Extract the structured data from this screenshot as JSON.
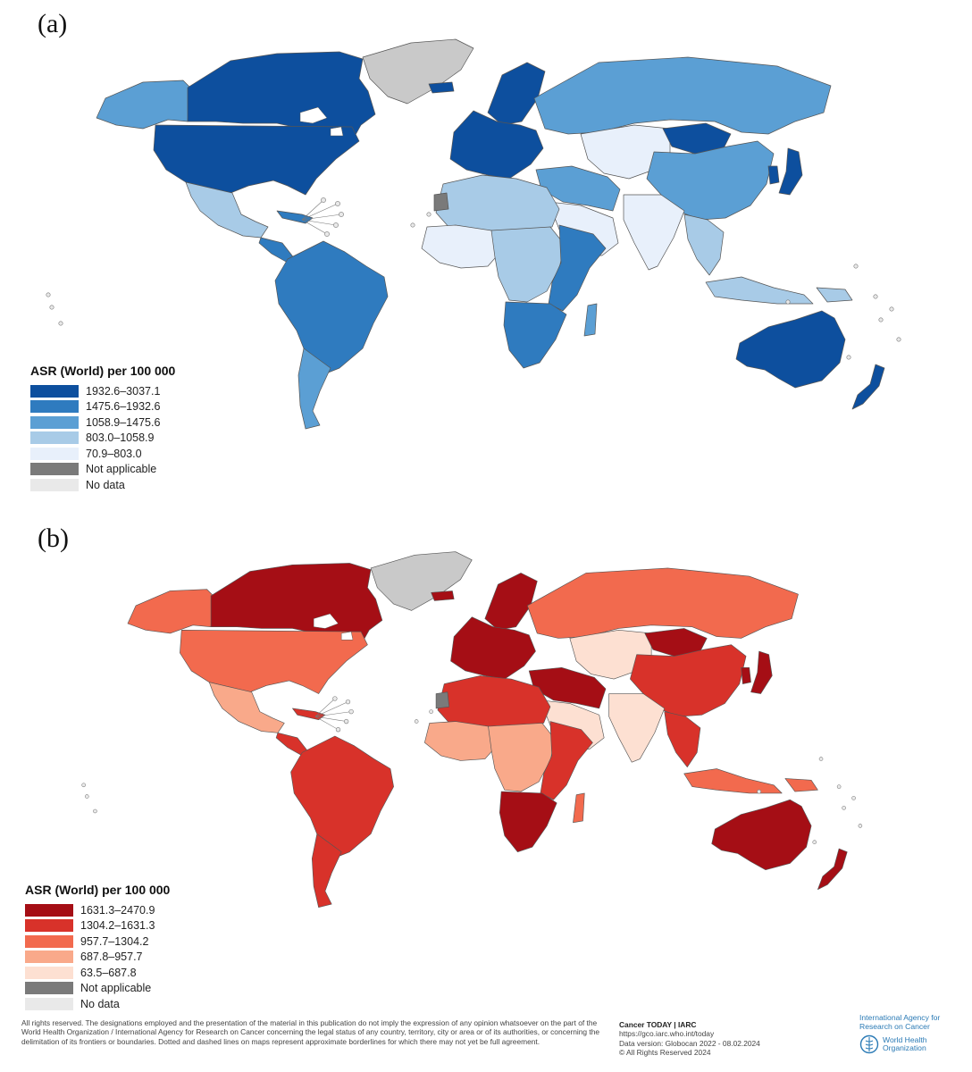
{
  "colors": {
    "blue_scale": [
      "#0d4f9e",
      "#2f7bbf",
      "#5b9fd4",
      "#a8cbe7",
      "#e8f0fb"
    ],
    "red_scale": [
      "#a50e15",
      "#d8322a",
      "#f26a4e",
      "#f9a98a",
      "#fde0d2"
    ],
    "not_applicable": "#7a7a7a",
    "no_data": "#e9e9e9",
    "greenland": "#c9c9c9",
    "border": "#555555"
  },
  "panels": [
    {
      "letter": "(a)",
      "legend": {
        "title": "ASR (World) per 100 000",
        "items": [
          {
            "label": "1932.6–3037.1",
            "color": "#0d4f9e"
          },
          {
            "label": "1475.6–1932.6",
            "color": "#2f7bbf"
          },
          {
            "label": "1058.9–1475.6",
            "color": "#5b9fd4"
          },
          {
            "label": "803.0–1058.9",
            "color": "#a8cbe7"
          },
          {
            "label": "70.9–803.0",
            "color": "#e8f0fb"
          },
          {
            "label": "Not applicable",
            "color": "#7a7a7a"
          },
          {
            "label": "No data",
            "color": "#e9e9e9"
          }
        ]
      },
      "regions": {
        "canada": "#0d4f9e",
        "usa": "#0d4f9e",
        "alaska": "#5b9fd4",
        "mexico": "#a8cbe7",
        "central_america": "#2f7bbf",
        "caribbean": "#2f7bbf",
        "south_america": "#2f7bbf",
        "southern_cone": "#5b9fd4",
        "greenland": "#c9c9c9",
        "iceland": "#0d4f9e",
        "europe": "#0d4f9e",
        "scandinavia": "#0d4f9e",
        "russia": "#5b9fd4",
        "central_asia": "#e8f0fb",
        "mongolia": "#0d4f9e",
        "china": "#5b9fd4",
        "japan": "#0d4f9e",
        "korea": "#0d4f9e",
        "middle_east": "#5b9fd4",
        "arabia": "#e8f0fb",
        "india": "#e8f0fb",
        "southeast_asia": "#a8cbe7",
        "indonesia": "#a8cbe7",
        "north_africa": "#a8cbe7",
        "west_africa": "#e8f0fb",
        "central_africa": "#a8cbe7",
        "east_africa": "#2f7bbf",
        "southern_africa": "#2f7bbf",
        "madagascar": "#5b9fd4",
        "australia": "#0d4f9e",
        "new_zealand": "#0d4f9e",
        "png": "#a8cbe7",
        "western_sahara": "#7a7a7a"
      }
    },
    {
      "letter": "(b)",
      "legend": {
        "title": "ASR (World) per 100 000",
        "items": [
          {
            "label": "1631.3–2470.9",
            "color": "#a50e15"
          },
          {
            "label": "1304.2–1631.3",
            "color": "#d8322a"
          },
          {
            "label": "957.7–1304.2",
            "color": "#f26a4e"
          },
          {
            "label": "687.8–957.7",
            "color": "#f9a98a"
          },
          {
            "label": "63.5–687.8",
            "color": "#fde0d2"
          },
          {
            "label": "Not applicable",
            "color": "#7a7a7a"
          },
          {
            "label": "No data",
            "color": "#e9e9e9"
          }
        ]
      },
      "regions": {
        "canada": "#a50e15",
        "usa": "#f26a4e",
        "alaska": "#f26a4e",
        "mexico": "#f9a98a",
        "central_america": "#d8322a",
        "caribbean": "#d8322a",
        "south_america": "#d8322a",
        "southern_cone": "#d8322a",
        "greenland": "#c9c9c9",
        "iceland": "#a50e15",
        "europe": "#a50e15",
        "scandinavia": "#a50e15",
        "russia": "#f26a4e",
        "central_asia": "#fde0d2",
        "mongolia": "#a50e15",
        "china": "#d8322a",
        "japan": "#a50e15",
        "korea": "#a50e15",
        "middle_east": "#a50e15",
        "arabia": "#fde0d2",
        "india": "#fde0d2",
        "southeast_asia": "#d8322a",
        "indonesia": "#f26a4e",
        "north_africa": "#d8322a",
        "west_africa": "#f9a98a",
        "central_africa": "#f9a98a",
        "east_africa": "#d8322a",
        "southern_africa": "#a50e15",
        "madagascar": "#f26a4e",
        "australia": "#a50e15",
        "new_zealand": "#a50e15",
        "png": "#f26a4e",
        "western_sahara": "#7a7a7a"
      }
    }
  ],
  "footer": {
    "disclaimer": "All rights reserved. The designations employed and the presentation of the material in this publication do not imply the expression of any opinion whatsoever on the part of the World Health Organization / International Agency for Research on Cancer concerning the legal status of any country, territory, city or area or of its authorities, or concerning the delimitation of its frontiers or boundaries. Dotted and dashed lines on maps represent approximate borderlines for which there may not yet be full agreement.",
    "source_title": "Cancer TODAY | IARC",
    "source_url": "https://gco.iarc.who.int/today",
    "data_version": "Data version: Globocan 2022 - 08.02.2024",
    "copyright": "© All Rights Reserved 2024",
    "iarc_name": "International Agency for Research on Cancer",
    "who_name": "World Health Organization"
  }
}
